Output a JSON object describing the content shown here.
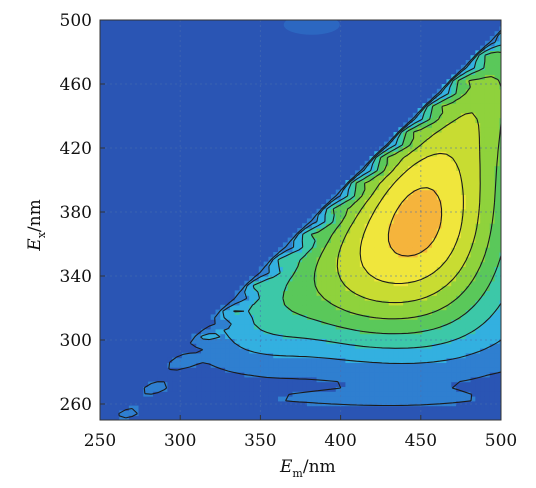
{
  "chart_data": {
    "type": "heatmap",
    "subtype": "filled-contour",
    "title": "",
    "xlabel": {
      "main": "E",
      "sub": "m",
      "unit": "/nm"
    },
    "ylabel": {
      "main": "E",
      "sub": "x",
      "unit": "/nm"
    },
    "xlim": [
      250,
      500
    ],
    "ylim": [
      250,
      500
    ],
    "x_ticks": [
      250,
      300,
      350,
      400,
      450,
      500
    ],
    "y_ticks": [
      260,
      300,
      340,
      380,
      420,
      460,
      500
    ],
    "grid": true,
    "colormap": [
      "#2a55b4",
      "#2f7fd0",
      "#33b0e0",
      "#3cc8a8",
      "#5ac85a",
      "#8fd23c",
      "#c8dc32",
      "#f0e63c",
      "#f5b43c",
      "#eb6e32"
    ],
    "levels": [
      0,
      1,
      2,
      3,
      4,
      5,
      6,
      7,
      8,
      9
    ],
    "notes": "Fluorescence excitation-emission matrix; peak intensity near Ex~385 nm, Em~450 nm; Rayleigh scatter ridge along Em≈Ex."
  }
}
